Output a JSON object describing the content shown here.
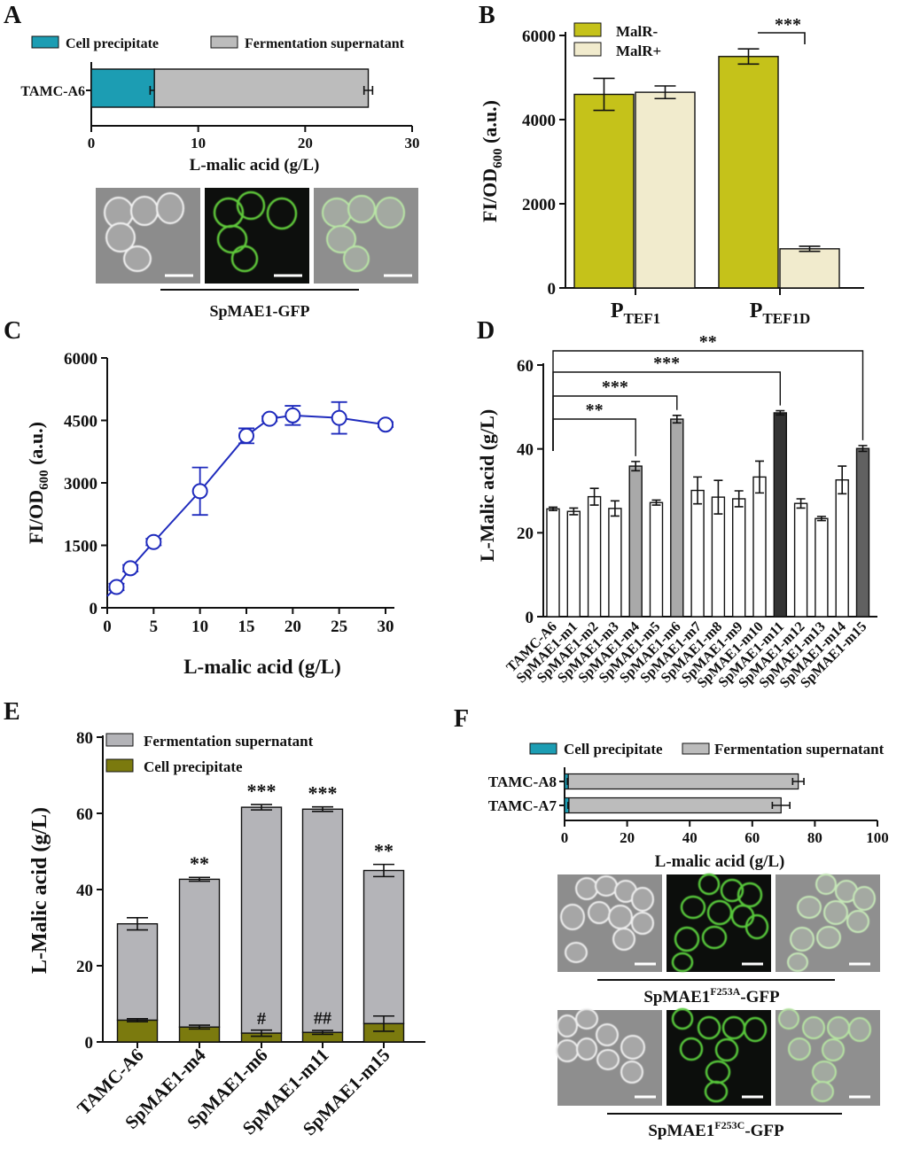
{
  "chart_data": [
    {
      "panel": "A",
      "type": "bar",
      "orientation": "horizontal",
      "stacked": true,
      "categories": [
        "TAMC-A6"
      ],
      "series": [
        {
          "name": "Cell precipitate",
          "color": "#1c9db3",
          "values": [
            5.9
          ],
          "errors": [
            0.4
          ]
        },
        {
          "name": "Fermentation supernatant",
          "color": "#bcbcbc",
          "values": [
            20.0
          ],
          "errors": [
            0.4
          ]
        }
      ],
      "xlabel": "L-malic acid (g/L)",
      "xlim": [
        0,
        30
      ],
      "xticks": [
        0,
        10,
        20,
        30
      ],
      "micrograph_caption": "SpMAE1-GFP"
    },
    {
      "panel": "B",
      "type": "bar",
      "categories": [
        "P_TEF1",
        "P_TEF1D"
      ],
      "category_labels": [
        {
          "main": "P",
          "sub": "TEF1"
        },
        {
          "main": "P",
          "sub": "TEF1D"
        }
      ],
      "series": [
        {
          "name": "MalR-",
          "color": "#c5c21a",
          "values": [
            4600,
            5500
          ],
          "errors": [
            380,
            180
          ]
        },
        {
          "name": "MalR+",
          "color": "#f1ebcd",
          "values": [
            4650,
            930
          ],
          "errors": [
            150,
            60
          ]
        }
      ],
      "ylabel": "FI/OD600 (a.u.)",
      "ylabel_main": "FI/OD",
      "ylabel_sub": "600",
      "ylabel_tail": " (a.u.)",
      "ylim": [
        0,
        6000
      ],
      "yticks": [
        0,
        2000,
        4000,
        6000
      ],
      "annotations": [
        {
          "between": [
            "P_TEF1D MalR-",
            "P_TEF1D MalR+"
          ],
          "text": "***"
        }
      ]
    },
    {
      "panel": "C",
      "type": "line",
      "x": [
        1,
        2.5,
        5,
        10,
        15,
        17.5,
        20,
        25,
        30
      ],
      "y": [
        500,
        950,
        1580,
        2800,
        4130,
        4540,
        4620,
        4560,
        4400
      ],
      "errors": [
        80,
        80,
        80,
        570,
        180,
        60,
        230,
        380,
        60
      ],
      "line_start": [
        0,
        280
      ],
      "color": "#1f2bbd",
      "xlabel": "L-malic acid (g/L)",
      "ylabel": "FI/OD600 (a.u.)",
      "ylabel_main": "FI/OD",
      "ylabel_sub": "600",
      "ylabel_tail": " (a.u.)",
      "xlim": [
        0,
        30
      ],
      "ylim": [
        0,
        6000
      ],
      "xticks": [
        0,
        5,
        10,
        15,
        20,
        25,
        30
      ],
      "yticks": [
        0,
        1500,
        3000,
        4500,
        6000
      ]
    },
    {
      "panel": "D",
      "type": "bar",
      "categories": [
        "TAMC-A6",
        "SpMAE1-m1",
        "SpMAE1-m2",
        "SpMAE1-m3",
        "SpMAE1-m4",
        "SpMAE1-m5",
        "SpMAE1-m6",
        "SpMAE1-m7",
        "SpMAE1-m8",
        "SpMAE1-m9",
        "SpMAE1-m10",
        "SpMAE1-m11",
        "SpMAE1-m12",
        "SpMAE1-m13",
        "SpMAE1-m14",
        "SpMAE1-m15"
      ],
      "values": [
        25.7,
        25.1,
        28.6,
        25.8,
        35.9,
        27.2,
        47.1,
        30.1,
        28.5,
        28.1,
        33.3,
        48.6,
        27.0,
        23.4,
        32.6,
        40.1
      ],
      "errors": [
        0.4,
        0.8,
        2.0,
        1.8,
        1.1,
        0.6,
        0.9,
        3.2,
        4.0,
        1.9,
        3.8,
        0.5,
        1.1,
        0.5,
        3.3,
        0.7
      ],
      "colors": [
        "#ffffff",
        "#ffffff",
        "#ffffff",
        "#ffffff",
        "#a9a9a9",
        "#ffffff",
        "#a9a9a9",
        "#ffffff",
        "#ffffff",
        "#ffffff",
        "#ffffff",
        "#333333",
        "#ffffff",
        "#ffffff",
        "#ffffff",
        "#616161"
      ],
      "ylabel": "L-Malic acid  (g/L)",
      "ylim": [
        0,
        60
      ],
      "yticks": [
        0,
        20,
        40,
        60
      ],
      "annotations": [
        {
          "from": "TAMC-A6",
          "to": "SpMAE1-m4",
          "text": "**"
        },
        {
          "from": "TAMC-A6",
          "to": "SpMAE1-m6",
          "text": "***"
        },
        {
          "from": "TAMC-A6",
          "to": "SpMAE1-m11",
          "text": "***"
        },
        {
          "from": "TAMC-A6",
          "to": "SpMAE1-m15",
          "text": "**"
        }
      ]
    },
    {
      "panel": "E",
      "type": "bar",
      "stacked": true,
      "categories": [
        "TAMC-A6",
        "SpMAE1-m4",
        "SpMAE1-m6",
        "SpMAE1-m11",
        "SpMAE1-m15"
      ],
      "series": [
        {
          "name": "Cell precipitate",
          "color": "#7b7a0e",
          "values": [
            5.7,
            3.9,
            2.3,
            2.5,
            4.8
          ],
          "errors": [
            0.4,
            0.5,
            0.8,
            0.5,
            2.0
          ]
        },
        {
          "name": "Fermentation supernatant",
          "color": "#b4b4b8",
          "totals": [
            31.0,
            42.7,
            61.6,
            61.1,
            45.0
          ],
          "errors": [
            1.6,
            0.5,
            0.7,
            0.6,
            1.6
          ]
        }
      ],
      "legend_order": [
        "Fermentation supernatant",
        "Cell precipitate"
      ],
      "ylabel": "L-Malic acid  (g/L)",
      "ylim": [
        0,
        80
      ],
      "yticks": [
        0,
        20,
        40,
        60,
        80
      ],
      "annotations_top": [
        "",
        "**",
        "***",
        "***",
        "**"
      ],
      "annotations_base": [
        "",
        "",
        "#",
        "##",
        ""
      ]
    },
    {
      "panel": "F",
      "type": "bar",
      "orientation": "horizontal",
      "stacked": true,
      "categories": [
        "TAMC-A8",
        "TAMC-A7"
      ],
      "series": [
        {
          "name": "Cell precipitate",
          "color": "#1c9db3",
          "values": [
            1.2,
            1.4
          ],
          "errors": [
            0.3,
            0.3
          ]
        },
        {
          "name": "Fermentation supernatant",
          "color": "#bcbcbc",
          "values": [
            73.5,
            67.8
          ],
          "errors": [
            1.8,
            2.8
          ]
        }
      ],
      "xlabel": "L-malic acid (g/L)",
      "xlim": [
        0,
        100
      ],
      "xticks": [
        0,
        20,
        40,
        60,
        80,
        100
      ],
      "micrograph_captions": [
        {
          "main": "SpMAE1",
          "sup": "F253A",
          "tail": "-GFP"
        },
        {
          "main": "SpMAE1",
          "sup": "F253C",
          "tail": "-GFP"
        }
      ]
    }
  ],
  "panel_labels": [
    "A",
    "B",
    "C",
    "D",
    "E",
    "F"
  ]
}
